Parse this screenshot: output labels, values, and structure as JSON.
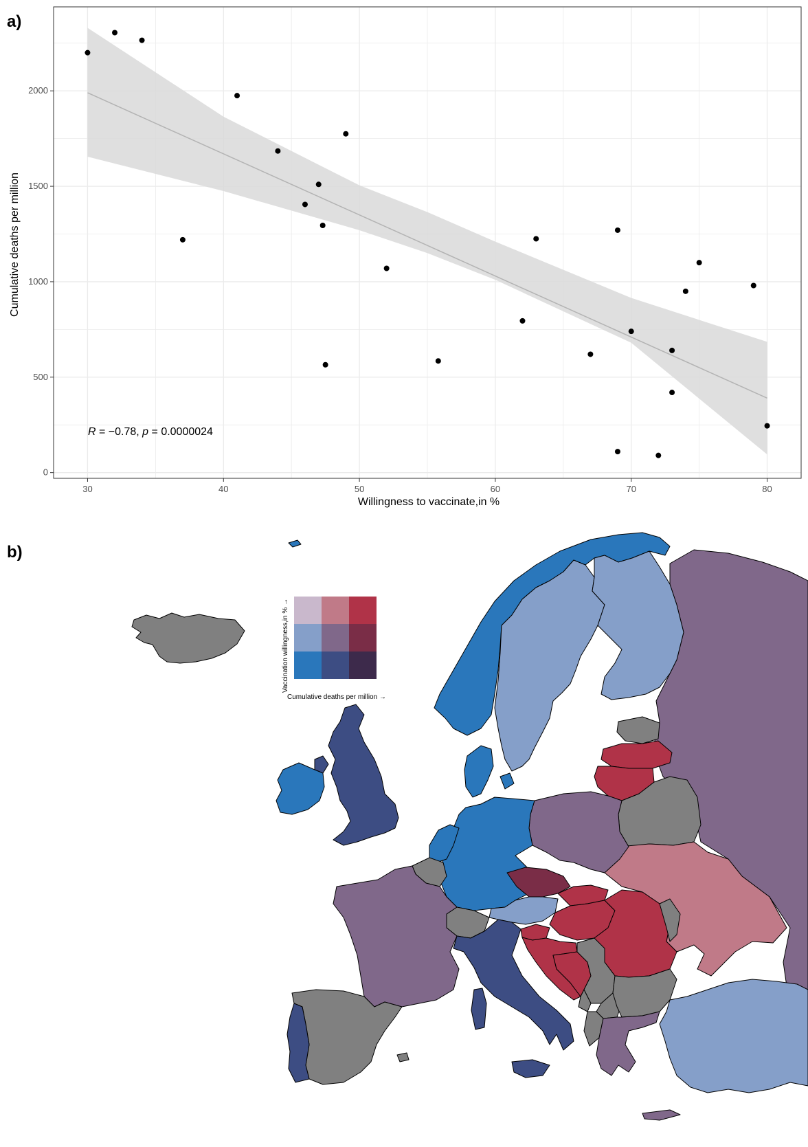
{
  "panels": {
    "a_label": "a)",
    "b_label": "b)"
  },
  "colors": {
    "plot_border": "#333333",
    "grid": "#ebebeb",
    "ribbon": "#d9d9d9",
    "trend_line": "#b3b3b3",
    "point": "#000000",
    "bivariate": [
      [
        "#c9b8cc",
        "#c07a88",
        "#b03348"
      ],
      [
        "#859fc9",
        "#80688a",
        "#7a2d47"
      ],
      [
        "#2a77bb",
        "#3d4d83",
        "#3d2a4b"
      ]
    ],
    "no_data": "#808080"
  },
  "chart_data": [
    {
      "type": "scatter",
      "title": "",
      "xlabel": "Willingness to vaccinate,in %",
      "ylabel": "Cumulative deaths per million",
      "xlim": [
        27.5,
        82.5
      ],
      "ylim": [
        -30,
        2440
      ],
      "xticks": [
        30,
        40,
        50,
        60,
        70,
        80
      ],
      "yticks": [
        0,
        500,
        1000,
        1500,
        2000
      ],
      "grid": true,
      "points": [
        {
          "x": 30,
          "y": 2200
        },
        {
          "x": 32,
          "y": 2305
        },
        {
          "x": 34,
          "y": 2265
        },
        {
          "x": 37,
          "y": 1220
        },
        {
          "x": 41,
          "y": 1975
        },
        {
          "x": 44,
          "y": 1685
        },
        {
          "x": 46,
          "y": 1405
        },
        {
          "x": 47,
          "y": 1510
        },
        {
          "x": 47.3,
          "y": 1295
        },
        {
          "x": 47.5,
          "y": 565
        },
        {
          "x": 49,
          "y": 1775
        },
        {
          "x": 52,
          "y": 1070
        },
        {
          "x": 55.8,
          "y": 585
        },
        {
          "x": 62,
          "y": 795
        },
        {
          "x": 63,
          "y": 1225
        },
        {
          "x": 67,
          "y": 620
        },
        {
          "x": 69,
          "y": 1270
        },
        {
          "x": 69,
          "y": 110
        },
        {
          "x": 70,
          "y": 740
        },
        {
          "x": 72,
          "y": 90
        },
        {
          "x": 73,
          "y": 640
        },
        {
          "x": 73,
          "y": 420
        },
        {
          "x": 74,
          "y": 950
        },
        {
          "x": 75,
          "y": 1100
        },
        {
          "x": 79,
          "y": 980
        },
        {
          "x": 80,
          "y": 245
        }
      ],
      "trend": {
        "x": [
          30,
          80
        ],
        "y": [
          1990,
          390
        ]
      },
      "ribbon": {
        "x": [
          30,
          40,
          50,
          55,
          60,
          70,
          80
        ],
        "lower": [
          1655,
          1475,
          1270,
          1150,
          1010,
          680,
          95
        ],
        "upper": [
          2330,
          1865,
          1505,
          1365,
          1210,
          915,
          685
        ]
      },
      "annotation": {
        "R_label": "R",
        "R_text": " = −0.78, ",
        "p_label": "p",
        "p_text": " = 0.0000024"
      }
    },
    {
      "type": "heatmap",
      "subtype": "bivariate choropleth map legend",
      "rows": 3,
      "cols": 3,
      "y_axis_label": "Vaccination willingness,in % →",
      "x_axis_label": "Cumulative deaths per million →"
    }
  ]
}
